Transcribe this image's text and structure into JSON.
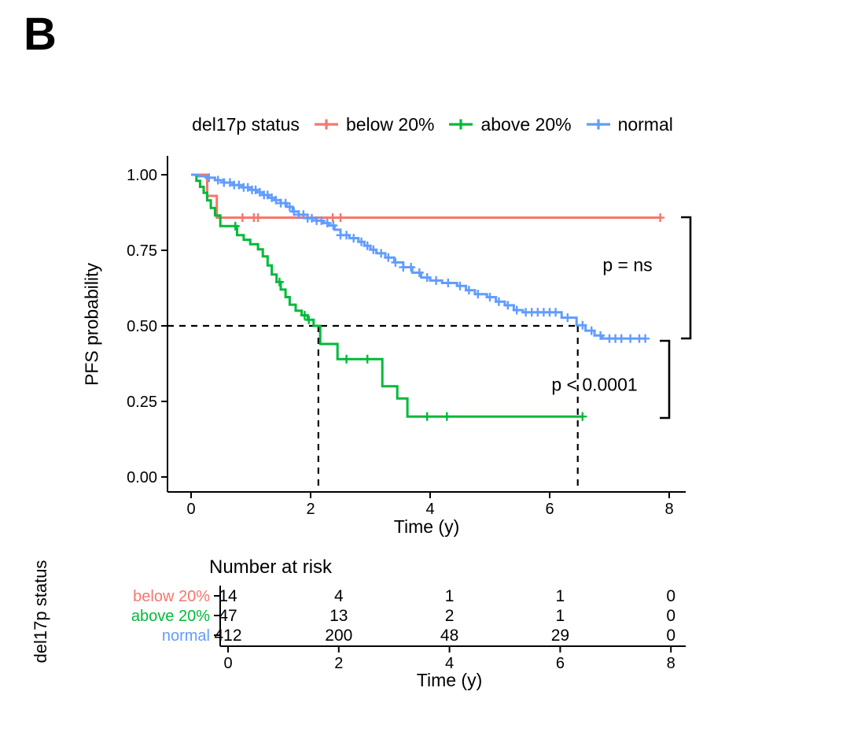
{
  "panel_label": "B",
  "legend": {
    "title": "del17p status",
    "entries": [
      {
        "label": "below 20%",
        "color": "#F8766D"
      },
      {
        "label": "above 20%",
        "color": "#00BA38"
      },
      {
        "label": "normal",
        "color": "#619CFF"
      }
    ]
  },
  "axes": {
    "y_label": "PFS probability",
    "x_label": "Time (y)",
    "x_ticks": [
      {
        "v": 0,
        "label": "0"
      },
      {
        "v": 2,
        "label": "2"
      },
      {
        "v": 4,
        "label": "4"
      },
      {
        "v": 6,
        "label": "6"
      },
      {
        "v": 8,
        "label": "8"
      }
    ],
    "y_ticks": [
      {
        "v": 1,
        "label": "1.00"
      },
      {
        "v": 0.75,
        "label": "0.75"
      },
      {
        "v": 0.5,
        "label": "0.50"
      },
      {
        "v": 0.25,
        "label": "0.25"
      },
      {
        "v": 0,
        "label": "0.00"
      }
    ]
  },
  "annotations": {
    "p_top": "p = ns",
    "p_bottom": "p < 0.0001",
    "median_probability": 0.5,
    "median_times": [
      2.13,
      6.47
    ]
  },
  "chart_data": {
    "type": "line",
    "subtype": "kaplan_meier_step",
    "xlabel": "Time (y)",
    "ylabel": "PFS probability",
    "xlim": [
      0,
      8
    ],
    "ylim": [
      0,
      1
    ],
    "legend_position": "top",
    "grid": false,
    "series": [
      {
        "name": "below 20%",
        "color": "#F8766D",
        "steps": [
          [
            0,
            1.0
          ],
          [
            0.27,
            0.93
          ],
          [
            0.43,
            0.858
          ],
          [
            7.85,
            0.858
          ]
        ],
        "censor_times": [
          0.86,
          1.05,
          1.12,
          2.37,
          2.5,
          7.85
        ]
      },
      {
        "name": "above 20%",
        "color": "#00BA38",
        "steps": [
          [
            0,
            1.0
          ],
          [
            0.09,
            0.98
          ],
          [
            0.15,
            0.96
          ],
          [
            0.21,
            0.94
          ],
          [
            0.27,
            0.915
          ],
          [
            0.33,
            0.89
          ],
          [
            0.4,
            0.865
          ],
          [
            0.49,
            0.83
          ],
          [
            0.77,
            0.8
          ],
          [
            0.88,
            0.785
          ],
          [
            0.99,
            0.77
          ],
          [
            1.12,
            0.753
          ],
          [
            1.2,
            0.73
          ],
          [
            1.28,
            0.7
          ],
          [
            1.35,
            0.67
          ],
          [
            1.43,
            0.645
          ],
          [
            1.5,
            0.62
          ],
          [
            1.58,
            0.595
          ],
          [
            1.65,
            0.57
          ],
          [
            1.75,
            0.55
          ],
          [
            1.85,
            0.535
          ],
          [
            1.95,
            0.52
          ],
          [
            2.05,
            0.5
          ],
          [
            2.16,
            0.44
          ],
          [
            2.45,
            0.39
          ],
          [
            3.2,
            0.3
          ],
          [
            3.45,
            0.26
          ],
          [
            3.62,
            0.2
          ],
          [
            6.55,
            0.2
          ]
        ],
        "censor_times": [
          0.74,
          1.48,
          1.9,
          1.97,
          2.6,
          2.95,
          3.95,
          4.28,
          6.55
        ]
      },
      {
        "name": "normal",
        "color": "#619CFF",
        "steps": [
          [
            0,
            1.0
          ],
          [
            0.12,
            0.995
          ],
          [
            0.25,
            0.99
          ],
          [
            0.4,
            0.982
          ],
          [
            0.55,
            0.974
          ],
          [
            0.7,
            0.966
          ],
          [
            0.85,
            0.958
          ],
          [
            1.0,
            0.95
          ],
          [
            1.1,
            0.942
          ],
          [
            1.2,
            0.933
          ],
          [
            1.3,
            0.924
          ],
          [
            1.4,
            0.916
          ],
          [
            1.5,
            0.906
          ],
          [
            1.6,
            0.894
          ],
          [
            1.7,
            0.878
          ],
          [
            1.8,
            0.868
          ],
          [
            1.95,
            0.856
          ],
          [
            2.1,
            0.848
          ],
          [
            2.2,
            0.84
          ],
          [
            2.3,
            0.832
          ],
          [
            2.4,
            0.818
          ],
          [
            2.5,
            0.8
          ],
          [
            2.65,
            0.79
          ],
          [
            2.8,
            0.778
          ],
          [
            2.9,
            0.765
          ],
          [
            3.0,
            0.752
          ],
          [
            3.1,
            0.74
          ],
          [
            3.25,
            0.726
          ],
          [
            3.4,
            0.71
          ],
          [
            3.55,
            0.694
          ],
          [
            3.7,
            0.676
          ],
          [
            3.85,
            0.66
          ],
          [
            4.0,
            0.65
          ],
          [
            4.2,
            0.642
          ],
          [
            4.45,
            0.632
          ],
          [
            4.6,
            0.618
          ],
          [
            4.75,
            0.605
          ],
          [
            4.95,
            0.595
          ],
          [
            5.1,
            0.58
          ],
          [
            5.25,
            0.568
          ],
          [
            5.4,
            0.552
          ],
          [
            5.55,
            0.545
          ],
          [
            6.2,
            0.527
          ],
          [
            6.45,
            0.502
          ],
          [
            6.6,
            0.484
          ],
          [
            6.75,
            0.468
          ],
          [
            6.88,
            0.458
          ],
          [
            7.6,
            0.458
          ]
        ],
        "censor_times": [
          0.3,
          0.45,
          0.55,
          0.65,
          0.72,
          0.8,
          0.88,
          0.95,
          1.02,
          1.08,
          1.15,
          1.22,
          1.28,
          1.35,
          1.42,
          1.5,
          1.58,
          1.65,
          1.72,
          1.8,
          1.88,
          1.95,
          2.02,
          2.1,
          2.18,
          2.28,
          2.38,
          2.5,
          2.6,
          2.72,
          2.85,
          2.95,
          3.05,
          3.18,
          3.3,
          3.42,
          3.55,
          3.68,
          3.82,
          3.95,
          4.1,
          4.3,
          4.5,
          4.65,
          4.8,
          5.0,
          5.15,
          5.3,
          5.45,
          5.6,
          5.7,
          5.8,
          5.9,
          6.0,
          6.1,
          6.3,
          6.55,
          6.7,
          6.85,
          7.0,
          7.1,
          7.2,
          7.35,
          7.5,
          7.6
        ]
      }
    ]
  },
  "risk_table": {
    "title": "Number at risk",
    "axis_label": "del17p status",
    "x_label": "Time (y)",
    "time_points": [
      0,
      2,
      4,
      6,
      8
    ],
    "rows": [
      {
        "label": "below 20%",
        "color": "#F8766D",
        "counts": [
          "14",
          "4",
          "1",
          "1",
          "0"
        ]
      },
      {
        "label": "above 20%",
        "color": "#00BA38",
        "counts": [
          "47",
          "13",
          "2",
          "1",
          "0"
        ]
      },
      {
        "label": "normal",
        "color": "#619CFF",
        "counts": [
          "412",
          "200",
          "48",
          "29",
          "0"
        ]
      }
    ]
  }
}
